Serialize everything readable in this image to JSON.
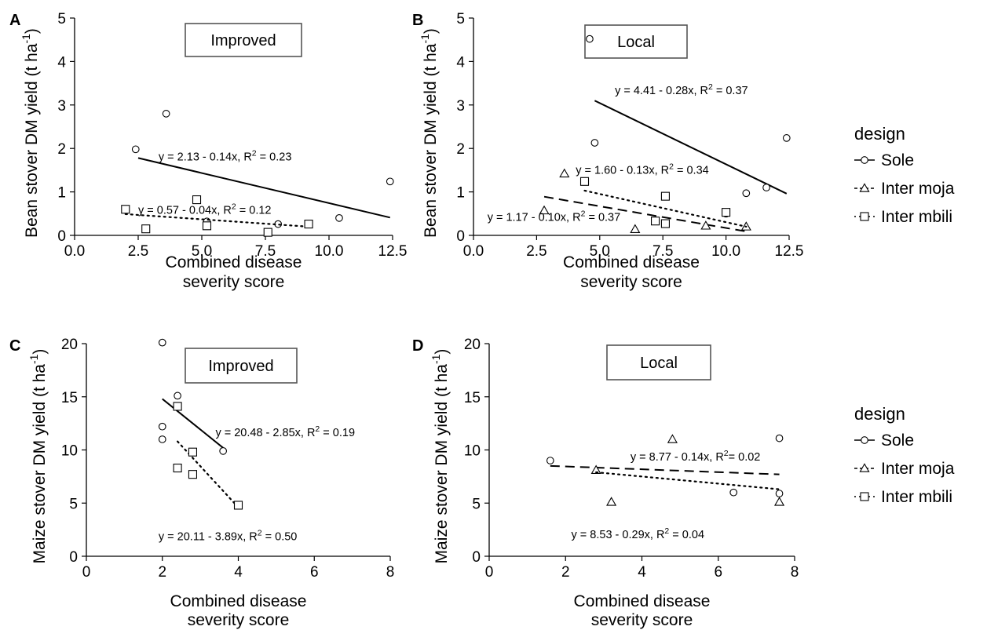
{
  "chart_data": [
    {
      "type": "scatter",
      "panel_label": "A",
      "box_label": "Improved",
      "ylabel": "Bean stover DM yield  (t ha",
      "ylabel_sup": "-1",
      "ylabel_close": ")",
      "xlabel_lines": [
        "Combined disease",
        "severity score"
      ],
      "xlim": [
        0,
        12.5
      ],
      "ylim": [
        0,
        5
      ],
      "x_ticks": [
        "0.0",
        "2.5",
        "5.0",
        "7.5",
        "10.0",
        "12.5"
      ],
      "y_ticks": [
        "0",
        "1",
        "2",
        "3",
        "4",
        "5"
      ],
      "series": [
        {
          "name": "Sole",
          "marker": "circle",
          "line": "solid",
          "points": [
            [
              2.4,
              1.98
            ],
            [
              3.6,
              2.8
            ],
            [
              5.2,
              0.32
            ],
            [
              8.0,
              0.26
            ],
            [
              10.4,
              0.4
            ],
            [
              12.4,
              1.24
            ]
          ],
          "fit": [
            [
              2.5,
              1.78
            ],
            [
              12.4,
              0.41
            ]
          ]
        },
        {
          "name": "Inter mbili",
          "marker": "square",
          "line": "dotted",
          "points": [
            [
              2.0,
              0.6
            ],
            [
              2.8,
              0.15
            ],
            [
              4.8,
              0.82
            ],
            [
              5.2,
              0.22
            ],
            [
              7.6,
              0.07
            ],
            [
              9.2,
              0.26
            ]
          ],
          "fit": [
            [
              2.0,
              0.49
            ],
            [
              9.2,
              0.2
            ]
          ]
        }
      ],
      "annotations": [
        {
          "text": "y = 2.13 - 0.14x, R",
          "sup": "2",
          "tail": " = 0.23",
          "x": 3.3,
          "y": 1.72
        },
        {
          "text": "y = 0.57 - 0.04x, R",
          "sup": "2",
          "tail": " = 0.12",
          "x": 2.5,
          "y": 0.5
        }
      ]
    },
    {
      "type": "scatter",
      "panel_label": "B",
      "box_label": "Local",
      "ylabel": "Bean stover DM yield  (t ha",
      "ylabel_sup": "-1",
      "ylabel_close": ")",
      "xlabel_lines": [
        "Combined disease",
        "severity score"
      ],
      "xlim": [
        0,
        12.5
      ],
      "ylim": [
        0,
        5
      ],
      "x_ticks": [
        "0.0",
        "2.5",
        "5.0",
        "7.5",
        "10.0",
        "12.5"
      ],
      "y_ticks": [
        "0",
        "1",
        "2",
        "3",
        "4",
        "5"
      ],
      "series": [
        {
          "name": "Sole",
          "marker": "circle",
          "line": "solid",
          "points": [
            [
              4.6,
              4.52
            ],
            [
              4.8,
              2.13
            ],
            [
              10.0,
              0.5
            ],
            [
              10.8,
              0.97
            ],
            [
              11.6,
              1.1
            ],
            [
              12.4,
              2.24
            ]
          ],
          "fit": [
            [
              4.8,
              3.1
            ],
            [
              12.4,
              0.96
            ]
          ]
        },
        {
          "name": "Inter moja",
          "marker": "triangle",
          "line": "dashed",
          "points": [
            [
              2.8,
              0.57
            ],
            [
              3.6,
              1.42
            ],
            [
              6.4,
              0.14
            ],
            [
              9.2,
              0.22
            ],
            [
              10.8,
              0.2
            ]
          ],
          "fit": [
            [
              2.8,
              0.89
            ],
            [
              10.8,
              0.09
            ]
          ]
        },
        {
          "name": "Inter mbili",
          "marker": "square",
          "line": "dotted",
          "points": [
            [
              4.4,
              1.24
            ],
            [
              7.2,
              0.33
            ],
            [
              7.6,
              0.27
            ],
            [
              7.6,
              0.9
            ],
            [
              10.0,
              0.53
            ]
          ],
          "fit": [
            [
              4.4,
              1.03
            ],
            [
              10.8,
              0.2
            ]
          ]
        }
      ],
      "annotations": [
        {
          "text": "y = 4.41 - 0.28x, R",
          "sup": "2",
          "tail": " = 0.37",
          "x": 5.6,
          "y": 3.25
        },
        {
          "text": "y = 1.60 - 0.13x, R",
          "sup": "2",
          "tail": " = 0.34",
          "x": 4.05,
          "y": 1.42
        },
        {
          "text": "y = 1.17 - 0.10x, R",
          "sup": "2",
          "tail": " = 0.37",
          "x": 0.55,
          "y": 0.33
        }
      ]
    },
    {
      "type": "scatter",
      "panel_label": "C",
      "box_label": "Improved",
      "ylabel": "Maize stover DM yield  (t ha",
      "ylabel_sup": "-1",
      "ylabel_close": ")",
      "xlabel_lines": [
        "Combined disease",
        "severity score"
      ],
      "xlim": [
        0,
        8
      ],
      "ylim": [
        0,
        20
      ],
      "x_ticks": [
        "0",
        "2",
        "4",
        "6",
        "8"
      ],
      "y_ticks": [
        "0",
        "5",
        "10",
        "15",
        "20"
      ],
      "series": [
        {
          "name": "Sole",
          "marker": "circle",
          "line": "solid",
          "points": [
            [
              2.0,
              20.1
            ],
            [
              2.0,
              12.2
            ],
            [
              2.0,
              11.0
            ],
            [
              2.4,
              15.1
            ],
            [
              3.6,
              9.9
            ]
          ],
          "fit": [
            [
              2.0,
              14.8
            ],
            [
              3.6,
              10.2
            ]
          ]
        },
        {
          "name": "Inter mbili",
          "marker": "square",
          "line": "dotted",
          "points": [
            [
              2.4,
              14.1
            ],
            [
              2.4,
              8.3
            ],
            [
              2.8,
              9.8
            ],
            [
              2.8,
              7.7
            ],
            [
              4.0,
              4.8
            ]
          ],
          "fit": [
            [
              2.4,
              10.8
            ],
            [
              4.0,
              4.6
            ]
          ]
        }
      ],
      "annotations": [
        {
          "text": "y = 20.48 - 2.85x, R",
          "sup": "2",
          "tail": " = 0.19",
          "x": 3.4,
          "y": 11.3
        },
        {
          "text": "y = 20.11 - 3.89x, R",
          "sup": "2",
          "tail": " = 0.50",
          "x": 1.9,
          "y": 1.5
        }
      ]
    },
    {
      "type": "scatter",
      "panel_label": "D",
      "box_label": "Local",
      "ylabel": "Maize stover DM yield  (t ha",
      "ylabel_sup": "-1",
      "ylabel_close": ")",
      "xlabel_lines": [
        "Combined disease",
        "severity score"
      ],
      "xlim": [
        0,
        8
      ],
      "ylim": [
        0,
        20
      ],
      "x_ticks": [
        "0",
        "2",
        "4",
        "6",
        "8"
      ],
      "y_ticks": [
        "0",
        "5",
        "10",
        "15",
        "20"
      ],
      "series": [
        {
          "name": "Sole",
          "marker": "circle",
          "line": "solid",
          "points": [
            [
              1.6,
              9.0
            ],
            [
              6.4,
              6.0
            ],
            [
              7.6,
              11.1
            ],
            [
              7.6,
              5.9
            ]
          ],
          "fit": []
        },
        {
          "name": "Inter moja",
          "marker": "triangle",
          "line": "dashed",
          "points": [
            [
              2.8,
              8.1
            ],
            [
              3.2,
              5.1
            ],
            [
              4.8,
              11.0
            ],
            [
              7.6,
              5.1
            ]
          ],
          "fit": [
            [
              1.6,
              8.5
            ],
            [
              7.6,
              7.7
            ]
          ]
        },
        {
          "name": "Inter mbili",
          "marker": "square",
          "line": "dotted",
          "points": [],
          "fit": [
            [
              2.8,
              7.9
            ],
            [
              7.6,
              6.3
            ]
          ]
        }
      ],
      "annotations": [
        {
          "text": "y = 8.77 - 0.14x, R",
          "sup": "2",
          "tail": "= 0.02",
          "x": 3.7,
          "y": 9.0
        },
        {
          "text": "y = 8.53 - 0.29x, R",
          "sup": "2",
          "tail": " = 0.04",
          "x": 2.15,
          "y": 1.7
        }
      ]
    }
  ],
  "legends": [
    {
      "title": "design",
      "items": [
        {
          "label": "Sole",
          "marker": "circle",
          "line": "solid"
        },
        {
          "label": "Inter moja",
          "marker": "triangle",
          "line": "dashed"
        },
        {
          "label": "Inter mbili",
          "marker": "square",
          "line": "dotted"
        }
      ]
    },
    {
      "title": "design",
      "items": [
        {
          "label": "Sole",
          "marker": "circle",
          "line": "solid"
        },
        {
          "label": "Inter moja",
          "marker": "triangle",
          "line": "dashed"
        },
        {
          "label": "Inter mbili",
          "marker": "square",
          "line": "dotted"
        }
      ]
    }
  ],
  "colors": {
    "ink": "#000000",
    "box_border": "#555555",
    "background": "#ffffff"
  }
}
